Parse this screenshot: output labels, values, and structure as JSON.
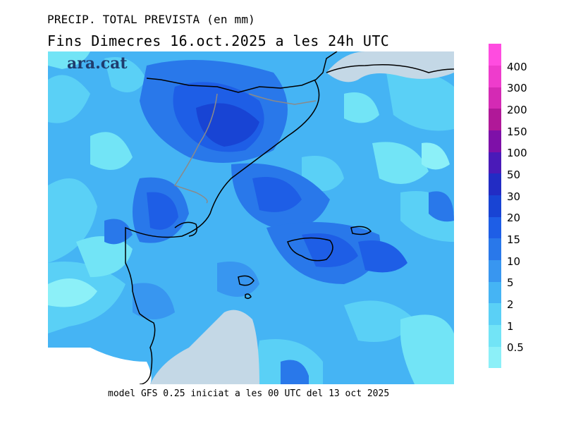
{
  "header": {
    "line1": "PRECIP. TOTAL PREVISTA (en mm)",
    "line2": "Fins Dimecres  16.oct.2025  a les 24h  UTC"
  },
  "logo": {
    "text": "ara.cat",
    "color": "#1f3c6e"
  },
  "footer": {
    "text": "model GFS 0.25 iniciat a les 00 UTC del 13 oct 2025"
  },
  "legend": {
    "unit": "mm",
    "classes": [
      {
        "label": "0.5",
        "color": "#8cf0f8"
      },
      {
        "label": "1",
        "color": "#72e4f6"
      },
      {
        "label": "2",
        "color": "#5ad0f6"
      },
      {
        "label": "5",
        "color": "#45b4f4"
      },
      {
        "label": "10",
        "color": "#3896f0"
      },
      {
        "label": "15",
        "color": "#2978ea"
      },
      {
        "label": "20",
        "color": "#1e5ee6"
      },
      {
        "label": "30",
        "color": "#1844d4"
      },
      {
        "label": "50",
        "color": "#222cc4"
      },
      {
        "label": "100",
        "color": "#4a1ab8"
      },
      {
        "label": "150",
        "color": "#7e10a8"
      },
      {
        "label": "200",
        "color": "#b01898"
      },
      {
        "label": "300",
        "color": "#d42ab4"
      },
      {
        "label": "400",
        "color": "#ee3ccc"
      },
      {
        "label": "",
        "color": "#ff4ce0"
      }
    ]
  },
  "map": {
    "no_data_color": "#c4d8e6",
    "coastline_color": "#000000",
    "border_color": "#8a8a8a"
  }
}
